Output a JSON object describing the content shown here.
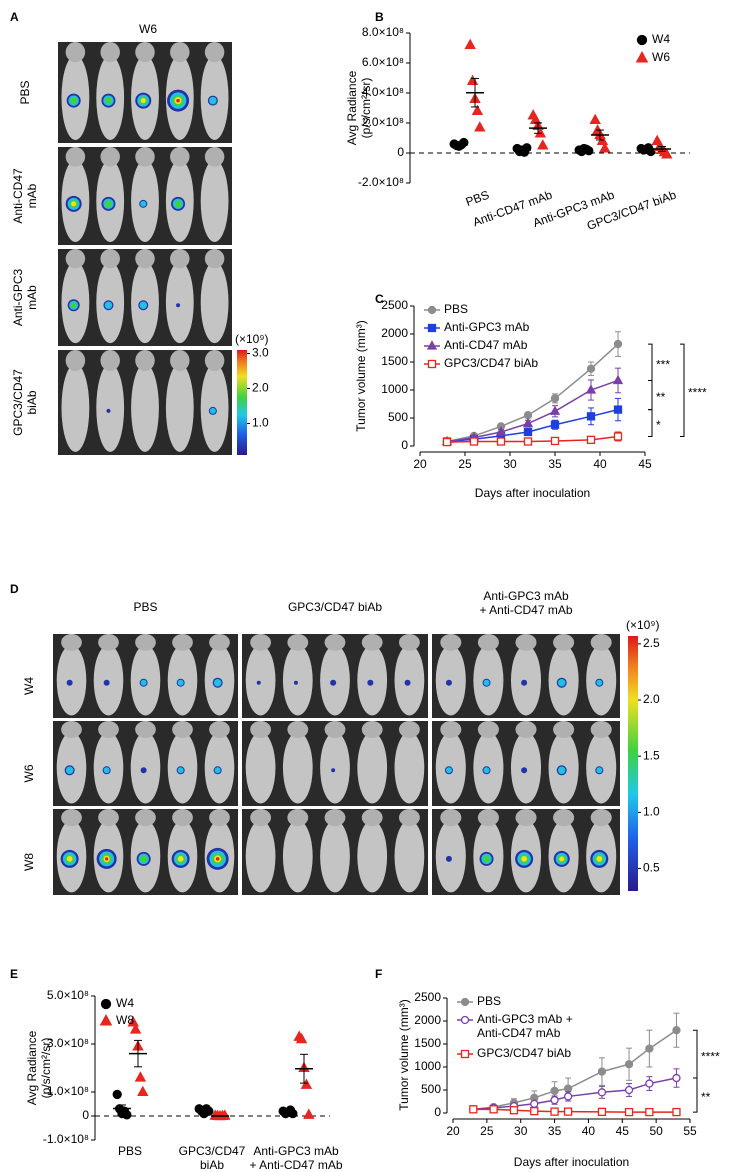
{
  "panels": [
    {
      "label": "A",
      "title": "W6",
      "rows": [
        "PBS",
        "Anti-CD47\nmAb",
        "Anti-GPC3\nmAb",
        "GPC3/CD47\nbiAb"
      ],
      "colorbar": {
        "label": "(×10⁹)",
        "lim": [
          0.1,
          3.1
        ],
        "ticks": [
          {
            "value": 1,
            "label": "1.0"
          },
          {
            "value": 2,
            "label": "2.0"
          },
          {
            "value": 3,
            "label": "3.0"
          }
        ]
      }
    },
    {
      "label": "D",
      "columns": [
        "PBS",
        "GPC3/CD47 biAb",
        "Anti-GPC3 mAb\n+ Anti-CD47 mAb"
      ],
      "rows": [
        "W4",
        "W6",
        "W8"
      ],
      "colorbar": {
        "label": "(×10⁹)",
        "lim": [
          0.3,
          2.57
        ],
        "ticks": [
          {
            "value": 2.5,
            "label": "2.5"
          },
          {
            "value": 2,
            "label": "2.0"
          },
          1.5,
          {
            "value": 1,
            "label": "1.0"
          },
          0.5
        ]
      }
    }
  ],
  "chart_data": [
    {
      "type": "dot",
      "panel": "B",
      "ylabel": "Avg Radiance\n(p/s/cm²/sr)",
      "categories": [
        "PBS",
        "Anti-CD47 mAb",
        "Anti-GPC3 mAb",
        "GPC3/CD47 biAb"
      ],
      "ylim": [
        -200000000.0,
        800000000.0
      ],
      "yticks": [
        {
          "value": 800000000.0,
          "label": "8.0×10⁸"
        },
        {
          "value": 600000000.0,
          "label": "6.0×10⁸"
        },
        {
          "value": 400000000.0,
          "label": "4.0×10⁸"
        },
        {
          "value": 200000000.0,
          "label": "2.0×10⁸"
        },
        0,
        {
          "value": -200000000.0,
          "label": "-2.0×10⁸"
        }
      ],
      "zero_line": true,
      "legend": "top-right",
      "series": [
        {
          "name": "W4",
          "color": "#000000",
          "marker": "circle",
          "values": [
            [
              60000000.0,
              50000000.0,
              45000000.0,
              55000000.0,
              70000000.0
            ],
            [
              30000000.0,
              10000000.0,
              20000000.0,
              5000000.0,
              35000000.0
            ],
            [
              20000000.0,
              10000000.0,
              30000000.0,
              25000000.0,
              15000000.0
            ],
            [
              30000000.0,
              20000000.0,
              25000000.0,
              35000000.0,
              10000000.0
            ]
          ],
          "mean": [
            56000000.0,
            21000000.0,
            20000000.0,
            25000000.0
          ],
          "sem": [
            5000000.0,
            6000000.0,
            4000000.0,
            4000000.0
          ]
        },
        {
          "name": "W6",
          "color": "#e8251f",
          "marker": "triangle",
          "values": [
            [
              720000000.0,
              480000000.0,
              360000000.0,
              280000000.0,
              170000000.0
            ],
            [
              250000000.0,
              220000000.0,
              180000000.0,
              130000000.0,
              50000000.0
            ],
            [
              220000000.0,
              150000000.0,
              120000000.0,
              80000000.0,
              30000000.0
            ],
            [
              80000000.0,
              40000000.0,
              20000000.0,
              5000000.0,
              -10000000.0
            ]
          ],
          "mean": [
            402000000.0,
            166000000.0,
            120000000.0,
            27000000.0
          ],
          "sem": [
            95000000.0,
            35000000.0,
            33000000.0,
            16000000.0
          ]
        }
      ]
    },
    {
      "type": "line",
      "panel": "C",
      "xlabel": "Days after inoculation",
      "ylabel": "Tumor volume (mm³)",
      "x": [
        23,
        26,
        29,
        32,
        35,
        39,
        42
      ],
      "xlim": [
        20,
        45
      ],
      "xticks": [
        20,
        25,
        30,
        35,
        40,
        45
      ],
      "ylim": [
        0,
        2500
      ],
      "yticks": [
        0,
        500,
        1000,
        1500,
        2000,
        2500
      ],
      "legend": "top-left",
      "series": [
        {
          "name": "PBS",
          "color": "#8c8c8c",
          "marker": "circle",
          "filled": true,
          "values": [
            80,
            180,
            350,
            550,
            850,
            1380,
            1820
          ],
          "errors": [
            10,
            20,
            30,
            40,
            80,
            120,
            220
          ]
        },
        {
          "name": "Anti-GPC3 mAb",
          "color": "#1f3fe0",
          "marker": "square",
          "filled": true,
          "values": [
            80,
            120,
            180,
            250,
            380,
            530,
            650
          ],
          "errors": [
            10,
            20,
            30,
            50,
            80,
            150,
            200
          ]
        },
        {
          "name": "Anti-CD47 mAb",
          "color": "#7b3fa8",
          "marker": "triangle",
          "filled": true,
          "values": [
            80,
            150,
            250,
            400,
            620,
            1000,
            1170
          ],
          "errors": [
            10,
            20,
            40,
            60,
            100,
            180,
            220
          ]
        },
        {
          "name": "GPC3/CD47 biAb",
          "color": "#e8251f",
          "marker": "square",
          "filled": false,
          "values": [
            70,
            80,
            80,
            80,
            90,
            110,
            170
          ],
          "errors": [
            10,
            10,
            10,
            15,
            20,
            40,
            80
          ]
        }
      ],
      "annotations": [
        "***",
        "**",
        "*",
        "****"
      ]
    },
    {
      "type": "dot",
      "panel": "E",
      "ylabel": "Avg Radiance\n(p/s/cm²/sr)",
      "categories": [
        "PBS",
        "GPC3/CD47\nbiAb",
        "Anti-GPC3 mAb\n+ Anti-CD47 mAb"
      ],
      "ylim": [
        -100000000.0,
        500000000.0
      ],
      "yticks": [
        {
          "value": 500000000.0,
          "label": "5.0×10⁸"
        },
        {
          "value": 300000000.0,
          "label": "3.0×10⁸"
        },
        {
          "value": 100000000.0,
          "label": "1.0×10⁸"
        },
        0,
        {
          "value": -100000000.0,
          "label": "-1.0×10⁸"
        }
      ],
      "zero_line": true,
      "legend": "top-left",
      "series": [
        {
          "name": "W4",
          "color": "#000000",
          "marker": "circle",
          "values": [
            [
              90000000.0,
              30000000.0,
              10000000.0,
              20000000.0,
              5000000.0
            ],
            [
              30000000.0,
              20000000.0,
              10000000.0,
              30000000.0,
              20000000.0
            ],
            [
              20000000.0,
              10000000.0,
              15000000.0,
              25000000.0,
              10000000.0
            ]
          ],
          "mean": [
            31000000.0,
            22000000.0,
            16000000.0
          ],
          "sem": [
            15000000.0,
            4000000.0,
            3000000.0
          ]
        },
        {
          "name": "W8",
          "color": "#e8251f",
          "marker": "triangle",
          "values": [
            [
              390000000.0,
              360000000.0,
              290000000.0,
              160000000.0,
              100000000.0
            ],
            [
              1000000.0,
              0,
              -1000000.0,
              0,
              1000000.0
            ],
            [
              330000000.0,
              320000000.0,
              200000000.0,
              130000000.0,
              5000000.0
            ]
          ],
          "mean": [
            260000000.0,
            200000.0,
            197000000.0
          ],
          "sem": [
            55000000.0,
            400000.0,
            60000000.0
          ]
        }
      ]
    },
    {
      "type": "line",
      "panel": "F",
      "xlabel": "Days after inoculation",
      "ylabel": "Tumor volume (mm³)",
      "x": [
        23,
        26,
        29,
        32,
        35,
        37,
        42,
        46,
        49,
        53
      ],
      "xlim": [
        20,
        55
      ],
      "xticks": [
        20,
        25,
        30,
        35,
        40,
        45,
        50,
        55
      ],
      "ylim": [
        0,
        2500
      ],
      "yticks": [
        0,
        500,
        1000,
        1500,
        2000,
        2500
      ],
      "legend": "top-left",
      "series": [
        {
          "name": "PBS",
          "color": "#8c8c8c",
          "marker": "circle",
          "filled": true,
          "values": [
            80,
            130,
            220,
            330,
            480,
            530,
            900,
            1060,
            1400,
            1800
          ],
          "errors": [
            10,
            40,
            90,
            150,
            200,
            230,
            300,
            350,
            400,
            370
          ]
        },
        {
          "name": "Anti-GPC3 mAb +\nAnti-CD47 mAb",
          "color": "#7b3fa8",
          "marker": "circle",
          "filled": false,
          "values": [
            80,
            110,
            150,
            200,
            280,
            360,
            450,
            500,
            640,
            760
          ],
          "errors": [
            10,
            20,
            40,
            60,
            90,
            100,
            130,
            140,
            150,
            200
          ]
        },
        {
          "name": "GPC3/CD47 biAb",
          "color": "#e8251f",
          "marker": "square",
          "filled": false,
          "values": [
            80,
            80,
            60,
            40,
            30,
            30,
            25,
            20,
            20,
            20
          ],
          "errors": [
            10,
            10,
            10,
            10,
            10,
            10,
            5,
            5,
            5,
            5
          ]
        }
      ],
      "annotations": [
        "****",
        "**"
      ]
    }
  ]
}
